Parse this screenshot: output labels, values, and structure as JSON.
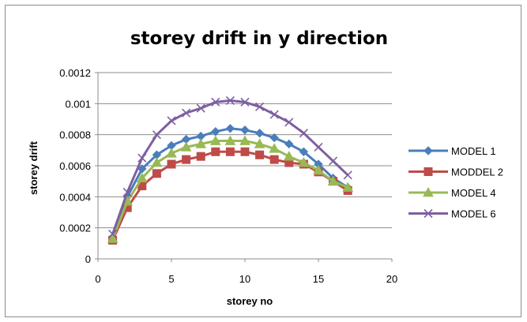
{
  "chart_data": {
    "type": "line",
    "title": "storey drift in y direction",
    "xlabel": "storey no",
    "ylabel": "storey drift",
    "xlim": [
      0,
      20
    ],
    "ylim": [
      0,
      0.0012
    ],
    "x_ticks": [
      "0",
      "5",
      "10",
      "15",
      "20"
    ],
    "y_ticks": [
      "0",
      "0.0002",
      "0.0004",
      "0.0006",
      "0.0008",
      "0.001",
      "0.0012"
    ],
    "grid": "horizontal major gridlines",
    "legend_position": "right",
    "x": [
      1,
      2,
      3,
      4,
      5,
      6,
      7,
      8,
      9,
      10,
      11,
      12,
      13,
      14,
      15,
      16,
      17
    ],
    "series": [
      {
        "name": "MODEL 1",
        "color": "#4a7ebb",
        "marker": "diamond",
        "values": [
          0.00014,
          0.0004,
          0.00058,
          0.00067,
          0.00073,
          0.00077,
          0.00079,
          0.00082,
          0.00084,
          0.00083,
          0.00081,
          0.00078,
          0.00074,
          0.00069,
          0.00061,
          0.00052,
          0.00046
        ]
      },
      {
        "name": "MODDEL 2",
        "color": "#be4b48",
        "marker": "square",
        "values": [
          0.00012,
          0.00033,
          0.00047,
          0.00055,
          0.00061,
          0.00064,
          0.00066,
          0.00069,
          0.00069,
          0.00069,
          0.00067,
          0.00064,
          0.00062,
          0.00061,
          0.00056,
          0.0005,
          0.00044
        ]
      },
      {
        "name": "MODEL 4",
        "color": "#98b954",
        "marker": "triangle",
        "values": [
          0.00013,
          0.00037,
          0.00052,
          0.00062,
          0.00068,
          0.00072,
          0.00074,
          0.00076,
          0.00076,
          0.00076,
          0.00074,
          0.00071,
          0.00066,
          0.00062,
          0.00057,
          0.0005,
          0.00046
        ]
      },
      {
        "name": "MODEL 6",
        "color": "#7d60a0",
        "marker": "x",
        "values": [
          0.00016,
          0.00043,
          0.00065,
          0.0008,
          0.00089,
          0.00094,
          0.00097,
          0.00101,
          0.00102,
          0.00101,
          0.00098,
          0.00093,
          0.00088,
          0.00081,
          0.00072,
          0.00063,
          0.00054
        ]
      }
    ]
  }
}
